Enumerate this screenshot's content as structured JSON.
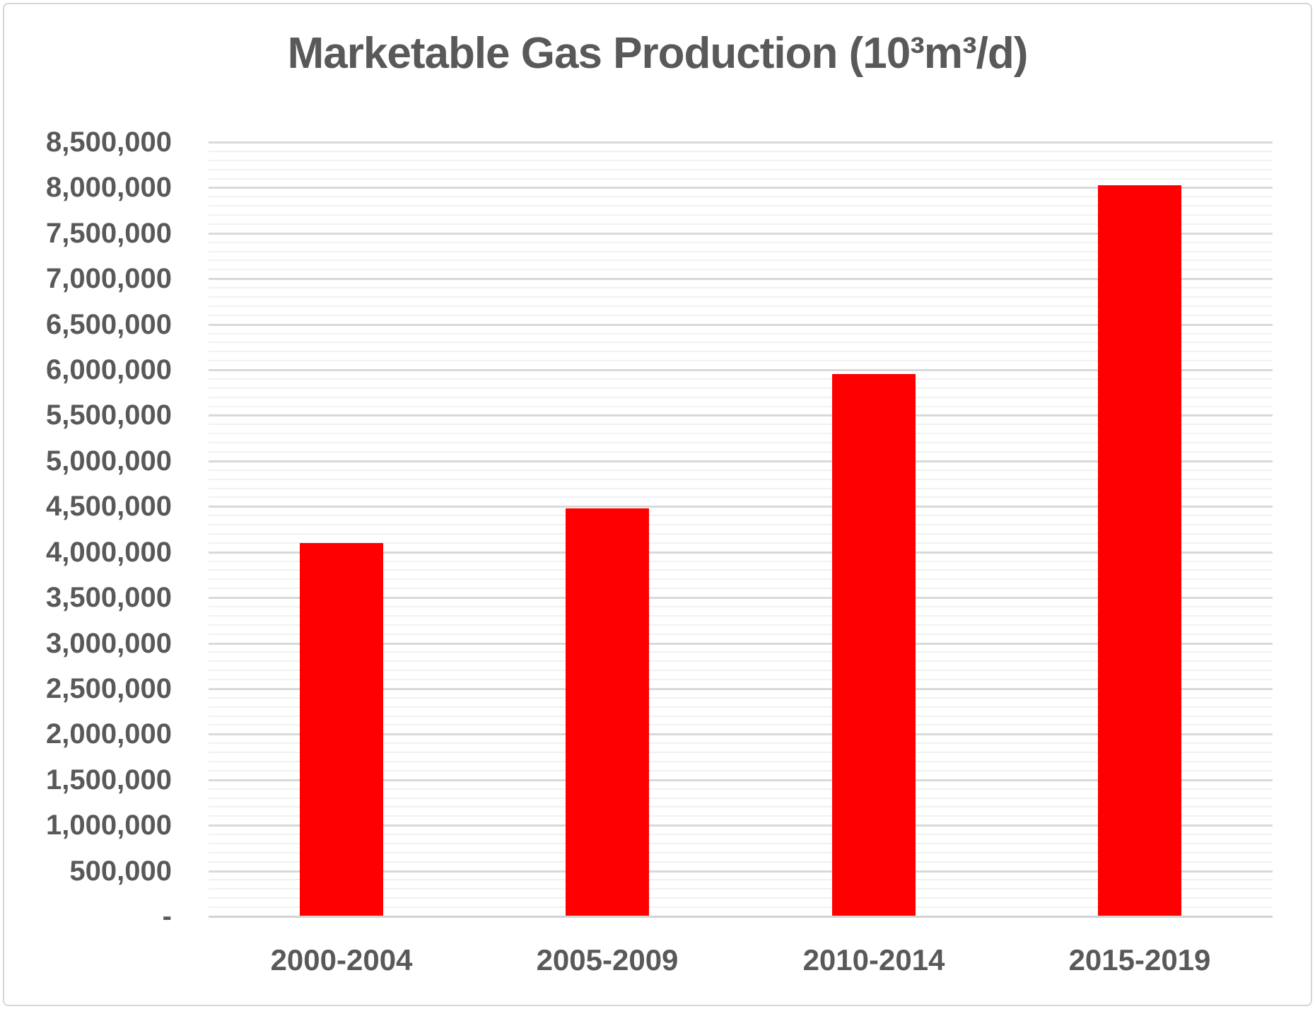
{
  "chart_data": {
    "type": "bar",
    "title": "Marketable Gas Production (10³m³/d)",
    "categories": [
      "2000-2004",
      "2005-2009",
      "2010-2014",
      "2015-2019"
    ],
    "values": [
      4100000,
      4480000,
      5950000,
      8030000
    ],
    "series_color": "#ff0000",
    "xlabel": "",
    "ylabel": "",
    "ylim": [
      0,
      8500000
    ],
    "y_major_step": 500000,
    "y_minor_step": 100000,
    "y_tick_labels": [
      "-",
      "500,000",
      "1,000,000",
      "1,500,000",
      "2,000,000",
      "2,500,000",
      "3,000,000",
      "3,500,000",
      "4,000,000",
      "4,500,000",
      "5,000,000",
      "5,500,000",
      "6,000,000",
      "6,500,000",
      "7,000,000",
      "7,500,000",
      "8,000,000",
      "8,500,000"
    ],
    "grid": "major and minor horizontal gridlines on",
    "legend": "none"
  },
  "colors": {
    "bar": "#ff0000",
    "text": "#595959",
    "major_gridline": "#d9d9d9",
    "minor_gridline": "#f1f1f1",
    "axis_line": "#d2d2d2",
    "chart_border": "#d6d6d6",
    "background": "#ffffff"
  }
}
